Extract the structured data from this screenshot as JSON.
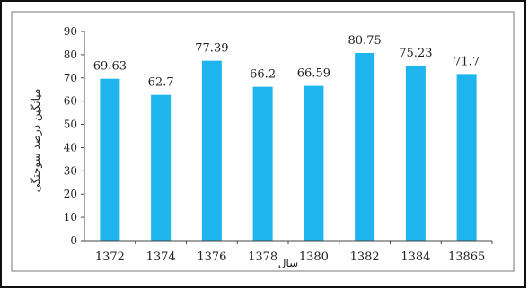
{
  "chart_data": {
    "type": "bar",
    "categories": [
      "1372",
      "1374",
      "1376",
      "1378",
      "1380",
      "1382",
      "1384",
      "13865"
    ],
    "values": [
      69.63,
      62.7,
      77.39,
      66.2,
      66.59,
      80.75,
      75.23,
      71.7
    ],
    "value_labels": [
      "69.63",
      "62.7",
      "77.39",
      "66.2",
      "66.59",
      "80.75",
      "75.23",
      "71.7"
    ],
    "xlabel": "سال",
    "ylabel": "میانگین درصد سوختگی",
    "ylim": [
      0,
      90
    ],
    "yticks": [
      0,
      10,
      20,
      30,
      40,
      50,
      60,
      70,
      80,
      90
    ],
    "grid": false,
    "legend": "none",
    "bar_color": "#1EB4EE"
  }
}
